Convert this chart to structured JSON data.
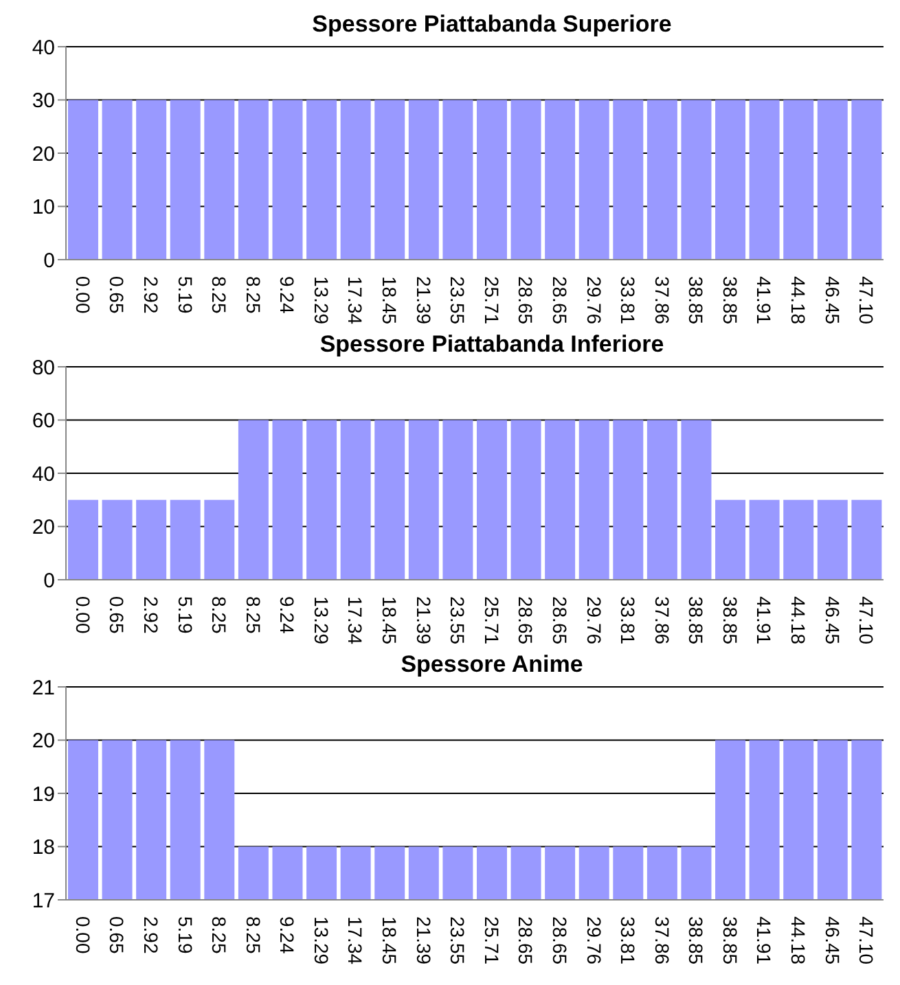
{
  "chart_data": [
    {
      "type": "bar",
      "title": "Spessore Piattabanda Superiore",
      "categories": [
        "0.00",
        "0.65",
        "2.92",
        "5.19",
        "8.25",
        "8.25",
        "9.24",
        "13.29",
        "17.34",
        "18.45",
        "21.39",
        "23.55",
        "25.71",
        "28.65",
        "28.65",
        "29.76",
        "33.81",
        "37.86",
        "38.85",
        "38.85",
        "41.91",
        "44.18",
        "46.45",
        "47.10"
      ],
      "values": [
        30,
        30,
        30,
        30,
        30,
        30,
        30,
        30,
        30,
        30,
        30,
        30,
        30,
        30,
        30,
        30,
        30,
        30,
        30,
        30,
        30,
        30,
        30,
        30
      ],
      "color": "#9999ff",
      "ylim": [
        0,
        40
      ],
      "yticks": [
        0,
        10,
        20,
        30,
        40
      ],
      "grid": "y"
    },
    {
      "type": "bar",
      "title": "Spessore Piattabanda Inferiore",
      "categories": [
        "0.00",
        "0.65",
        "2.92",
        "5.19",
        "8.25",
        "8.25",
        "9.24",
        "13.29",
        "17.34",
        "18.45",
        "21.39",
        "23.55",
        "25.71",
        "28.65",
        "28.65",
        "29.76",
        "33.81",
        "37.86",
        "38.85",
        "38.85",
        "41.91",
        "44.18",
        "46.45",
        "47.10"
      ],
      "values": [
        30,
        30,
        30,
        30,
        30,
        60,
        60,
        60,
        60,
        60,
        60,
        60,
        60,
        60,
        60,
        60,
        60,
        60,
        60,
        30,
        30,
        30,
        30,
        30
      ],
      "color": "#9999ff",
      "ylim": [
        0,
        80
      ],
      "yticks": [
        0,
        20,
        40,
        60,
        80
      ],
      "grid": "y"
    },
    {
      "type": "bar",
      "title": "Spessore Anime",
      "categories": [
        "0.00",
        "0.65",
        "2.92",
        "5.19",
        "8.25",
        "8.25",
        "9.24",
        "13.29",
        "17.34",
        "18.45",
        "21.39",
        "23.55",
        "25.71",
        "28.65",
        "28.65",
        "29.76",
        "33.81",
        "37.86",
        "38.85",
        "38.85",
        "41.91",
        "44.18",
        "46.45",
        "47.10"
      ],
      "values": [
        20,
        20,
        20,
        20,
        20,
        18,
        18,
        18,
        18,
        18,
        18,
        18,
        18,
        18,
        18,
        18,
        18,
        18,
        18,
        20,
        20,
        20,
        20,
        20
      ],
      "color": "#9999ff",
      "ylim": [
        17,
        21
      ],
      "yticks": [
        17,
        18,
        19,
        20,
        21
      ],
      "grid": "y"
    }
  ]
}
